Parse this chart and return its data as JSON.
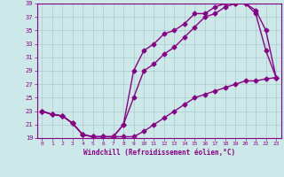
{
  "xlabel": "Windchill (Refroidissement éolien,°C)",
  "xlim": [
    -0.5,
    23.5
  ],
  "ylim": [
    19,
    39
  ],
  "xticks": [
    0,
    1,
    2,
    3,
    4,
    5,
    6,
    7,
    8,
    9,
    10,
    11,
    12,
    13,
    14,
    15,
    16,
    17,
    18,
    19,
    20,
    21,
    22,
    23
  ],
  "yticks": [
    19,
    21,
    23,
    25,
    27,
    29,
    31,
    33,
    35,
    37,
    39
  ],
  "bg_color": "#cce8e8",
  "line_color": "#880088",
  "grid_color": "#aacccc",
  "curve1_x": [
    0,
    1,
    2,
    3,
    4,
    5,
    6,
    7,
    8,
    9,
    10,
    11,
    12,
    13,
    14,
    15,
    16,
    17,
    18,
    19,
    20,
    21,
    22,
    23
  ],
  "curve1_y": [
    23,
    22.5,
    22.3,
    21.2,
    19.5,
    19.2,
    19.2,
    19.2,
    19.2,
    19.2,
    20,
    21,
    22,
    23,
    24,
    25,
    25.5,
    26,
    26.5,
    27,
    27.5,
    27.5,
    27.8,
    28
  ],
  "curve2_x": [
    0,
    1,
    2,
    3,
    4,
    5,
    6,
    7,
    8,
    9,
    10,
    11,
    12,
    13,
    14,
    15,
    16,
    17,
    18,
    19,
    20,
    21,
    22,
    23
  ],
  "curve2_y": [
    23,
    22.5,
    22.3,
    21.2,
    19.5,
    19.2,
    19.2,
    19.2,
    21,
    29,
    32,
    33,
    34.5,
    35,
    36,
    37.5,
    37.5,
    38.5,
    39,
    39,
    39,
    37.5,
    32,
    28
  ],
  "curve3_x": [
    0,
    1,
    2,
    3,
    4,
    5,
    6,
    7,
    8,
    9,
    10,
    11,
    12,
    13,
    14,
    15,
    16,
    17,
    18,
    19,
    20,
    21,
    22,
    23
  ],
  "curve3_y": [
    23,
    22.5,
    22.3,
    21.2,
    19.5,
    19.2,
    19.2,
    19.2,
    21.0,
    25.0,
    29,
    30,
    31.5,
    32.5,
    34.0,
    35.5,
    37,
    37.5,
    38.5,
    39,
    39,
    38,
    35,
    28
  ],
  "marker": "D",
  "markersize": 2.5,
  "linewidth": 1.0
}
